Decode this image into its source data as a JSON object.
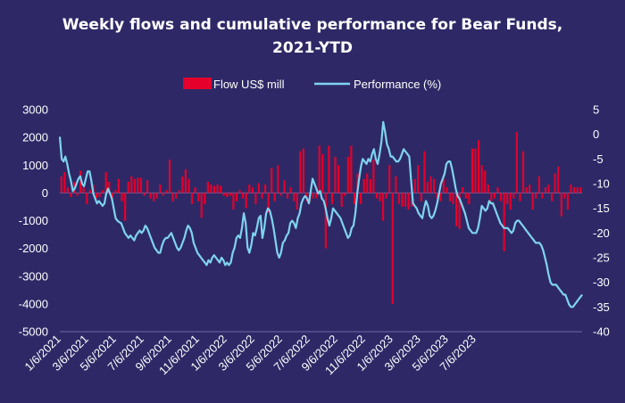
{
  "chart_data": {
    "type": "bar+line",
    "title_line1": "Weekly flows and cumulative performance for Bear Funds,",
    "title_line2": "2021-YTD",
    "colors": {
      "background": "#2e2966",
      "bars": "#e4002b",
      "line": "#7fd3ef",
      "text": "#ffffff"
    },
    "legend": {
      "placement": "top-center",
      "bar_label": "Flow US$ mill",
      "line_label": "Performance (%)"
    },
    "y_left": {
      "min": -5000,
      "max": 3000,
      "ticks": [
        3000,
        2000,
        1000,
        0,
        -1000,
        -2000,
        -3000,
        -4000,
        -5000
      ]
    },
    "y_right": {
      "min": -40,
      "max": 5,
      "ticks": [
        5,
        0,
        -5,
        -10,
        -15,
        -20,
        -25,
        -30,
        -35,
        -40
      ]
    },
    "x_ticks": [
      "1/6/2021",
      "3/6/2021",
      "5/6/2021",
      "7/6/2021",
      "9/6/2021",
      "11/6/2021",
      "1/6/2022",
      "3/6/2022",
      "5/6/2022",
      "7/6/2022",
      "9/6/2022",
      "11/6/2022",
      "1/6/2023",
      "3/6/2023",
      "5/6/2023",
      "7/6/2023"
    ],
    "weeks_per_month": 4.345,
    "series": [
      {
        "name": "Flow US$ mill",
        "kind": "bar",
        "values": [
          600,
          750,
          200,
          -150,
          400,
          -100,
          800,
          200,
          -400,
          100,
          300,
          -200,
          -150,
          100,
          750,
          400,
          -200,
          100,
          500,
          -300,
          -1000,
          400,
          600,
          500,
          550,
          550,
          -100,
          450,
          -200,
          -300,
          -200,
          300,
          -100,
          100,
          1200,
          -300,
          -200,
          100,
          600,
          850,
          500,
          -400,
          200,
          -300,
          -900,
          -400,
          400,
          300,
          250,
          300,
          250,
          -100,
          -150,
          -100,
          -600,
          -300,
          100,
          -200,
          -550,
          300,
          200,
          -400,
          350,
          -200,
          300,
          -700,
          900,
          -300,
          1000,
          -100,
          450,
          -200,
          200,
          -300,
          -600,
          1500,
          1600,
          -300,
          -300,
          -200,
          -200,
          1700,
          1400,
          -2000,
          1700,
          -400,
          1300,
          1000,
          -500,
          -100,
          1300,
          1700,
          -400,
          700,
          -400,
          500,
          700,
          500,
          1200,
          -200,
          -300,
          -1000,
          -200,
          1000,
          -4000,
          600,
          -400,
          -500,
          -500,
          -600,
          -500,
          500,
          1000,
          -300,
          1500,
          400,
          600,
          500,
          -200,
          -300,
          500,
          200,
          -300,
          -400,
          -1200,
          -1300,
          200,
          -200,
          -400,
          1600,
          1600,
          1900,
          1000,
          800,
          300,
          -300,
          -200,
          200,
          -300,
          -2100,
          -400,
          -600,
          -200,
          2200,
          -300,
          1500,
          200,
          300,
          -600,
          -200,
          600,
          -200,
          200,
          300,
          -300,
          700,
          950,
          -850,
          -200,
          -600,
          300,
          200,
          200,
          200
        ]
      },
      {
        "name": "Performance (%)",
        "kind": "line",
        "values": [
          -0.5,
          -5,
          -5.5,
          -4.5,
          -6,
          -8,
          -9.5,
          -11.5,
          -11,
          -10,
          -9,
          -8.5,
          -10,
          -10.5,
          -9,
          -7.5,
          -7.5,
          -9.5,
          -12,
          -13,
          -14,
          -13.5,
          -14,
          -14.5,
          -14,
          -12,
          -11,
          -12,
          -13,
          -15,
          -17,
          -17.5,
          -17.8,
          -18,
          -19,
          -20,
          -20.5,
          -21,
          -20.5,
          -21,
          -21.5,
          -20.5,
          -20,
          -19.5,
          -20,
          -19.5,
          -18.5,
          -19,
          -20,
          -21,
          -22,
          -23,
          -23.5,
          -24,
          -24,
          -22.5,
          -21.5,
          -21,
          -21,
          -20.5,
          -20,
          -21,
          -22,
          -23,
          -23.5,
          -23,
          -22,
          -21,
          -19.5,
          -18.5,
          -19,
          -20,
          -22,
          -23,
          -24,
          -24.5,
          -25,
          -25.5,
          -26,
          -26.5,
          -25.5,
          -26,
          -25,
          -24.5,
          -25,
          -25.5,
          -26,
          -25,
          -25.5,
          -26.5,
          -26,
          -26.5,
          -26,
          -24,
          -23,
          -21,
          -20.5,
          -21,
          -19,
          -16,
          -18,
          -23,
          -24,
          -22.5,
          -20,
          -20.5,
          -19,
          -17,
          -16.5,
          -21,
          -19,
          -16,
          -15,
          -15.5,
          -17,
          -19,
          -21.5,
          -24,
          -25,
          -24,
          -22,
          -21.5,
          -20.5,
          -20,
          -18,
          -17.5,
          -18,
          -19,
          -17,
          -16,
          -14,
          -13,
          -12.5,
          -13,
          -14,
          -11.5,
          -9,
          -10,
          -11,
          -12,
          -11.5,
          -13,
          -13.5,
          -15,
          -17,
          -18.5,
          -17,
          -15,
          -15.5,
          -16,
          -16.5,
          -17,
          -18,
          -19,
          -20,
          -21,
          -20.5,
          -19,
          -18.5,
          -16,
          -12,
          -9,
          -6.5,
          -5,
          -5.5,
          -6,
          -5,
          -5.5,
          -4,
          -3,
          -5,
          -6,
          -4,
          -1.5,
          2.5,
          0.5,
          -2,
          -3,
          -4.5,
          -4.5,
          -5,
          -5.5,
          -5.5,
          -5,
          -4,
          -3,
          -3.5,
          -4,
          -4.5,
          -9.5,
          -14,
          -14.5,
          -15,
          -16,
          -16.5,
          -17,
          -15,
          -13.5,
          -14.5,
          -16.5,
          -17,
          -16.5,
          -15.5,
          -14,
          -12,
          -10,
          -9,
          -8,
          -6,
          -5.5,
          -5.5,
          -7,
          -9,
          -11,
          -12.5,
          -13,
          -14,
          -15,
          -16,
          -17.5,
          -19,
          -19.5,
          -20,
          -20,
          -20,
          -19,
          -17,
          -14.5,
          -15,
          -15.5,
          -15,
          -13.5,
          -14,
          -14,
          -15,
          -16,
          -17,
          -18,
          -18.5,
          -19,
          -19,
          -19,
          -19.5,
          -20,
          -19.5,
          -18,
          -17.5,
          -17.5,
          -18,
          -18.5,
          -19,
          -19.5,
          -20,
          -20.5,
          -21,
          -21.5,
          -22,
          -22,
          -22,
          -22.5,
          -23.5,
          -25,
          -26.5,
          -28.5,
          -30,
          -30.5,
          -30.5,
          -30.5,
          -31,
          -31.5,
          -32,
          -32.5,
          -32.5,
          -33.5,
          -34.5,
          -35,
          -35,
          -34.5,
          -34,
          -33.5,
          -33,
          -32.5
        ]
      }
    ]
  }
}
